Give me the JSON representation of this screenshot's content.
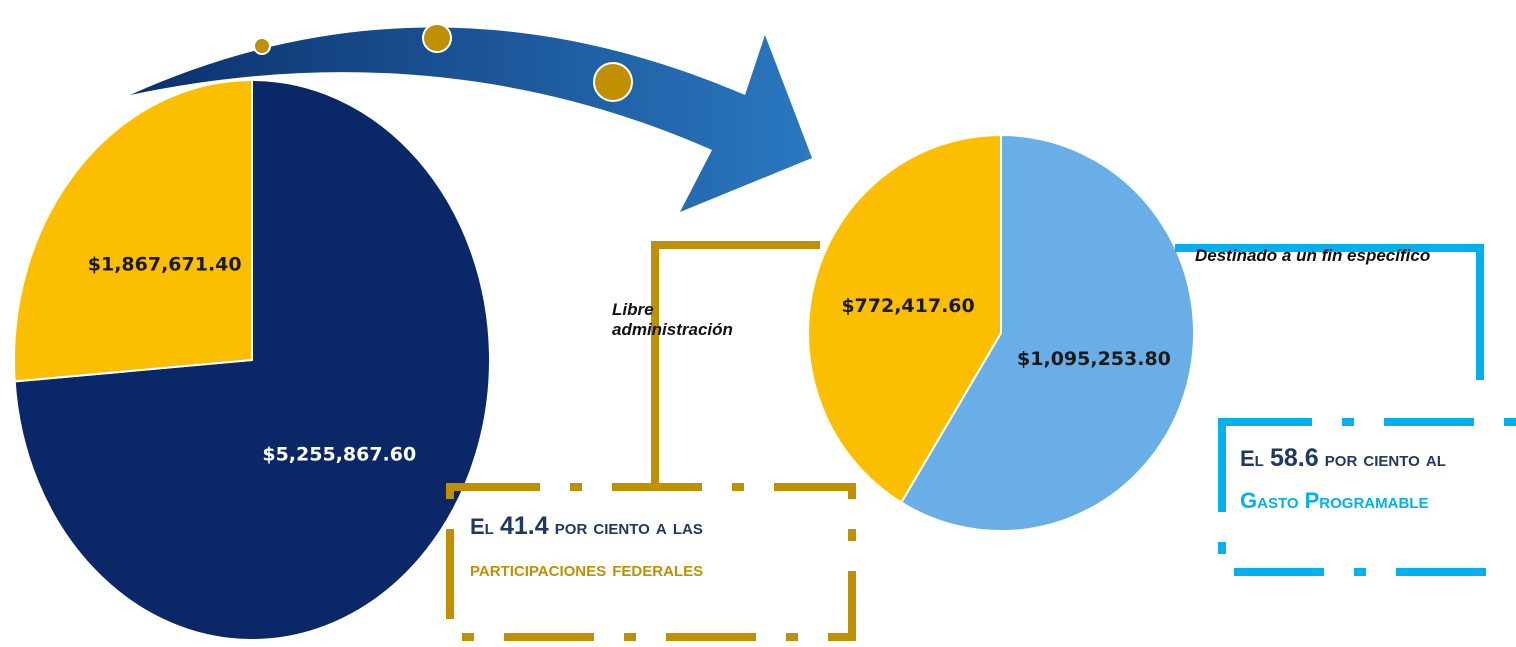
{
  "chart_data": [
    {
      "type": "pie",
      "values": [
        5255867.6,
        1867671.4
      ],
      "value_labels": [
        "$5,255,867.60",
        "$1,867,671.40"
      ],
      "colors": [
        "#0a2868",
        "#fcbf00"
      ],
      "label_colors": [
        "#ffffff",
        "#1a1a1a"
      ]
    },
    {
      "type": "pie",
      "values": [
        1095253.8,
        772417.6
      ],
      "value_labels": [
        "$1,095,253.80",
        "$772,417.60"
      ],
      "colors": [
        "#6aaee8",
        "#fcbf00"
      ],
      "label_colors": [
        "#1a1a1a",
        "#1a1a1a"
      ]
    }
  ],
  "notes": {
    "left": "Libre administración",
    "right": "Destinado a un fin específico",
    "box_left": {
      "lead": "El",
      "number": "41.4",
      "rest": "por ciento a las",
      "highlight": "participaciones federales"
    },
    "box_right": {
      "lead": "El",
      "number": "58.6",
      "rest": "por ciento al",
      "highlight": "Gasto Programable"
    }
  }
}
